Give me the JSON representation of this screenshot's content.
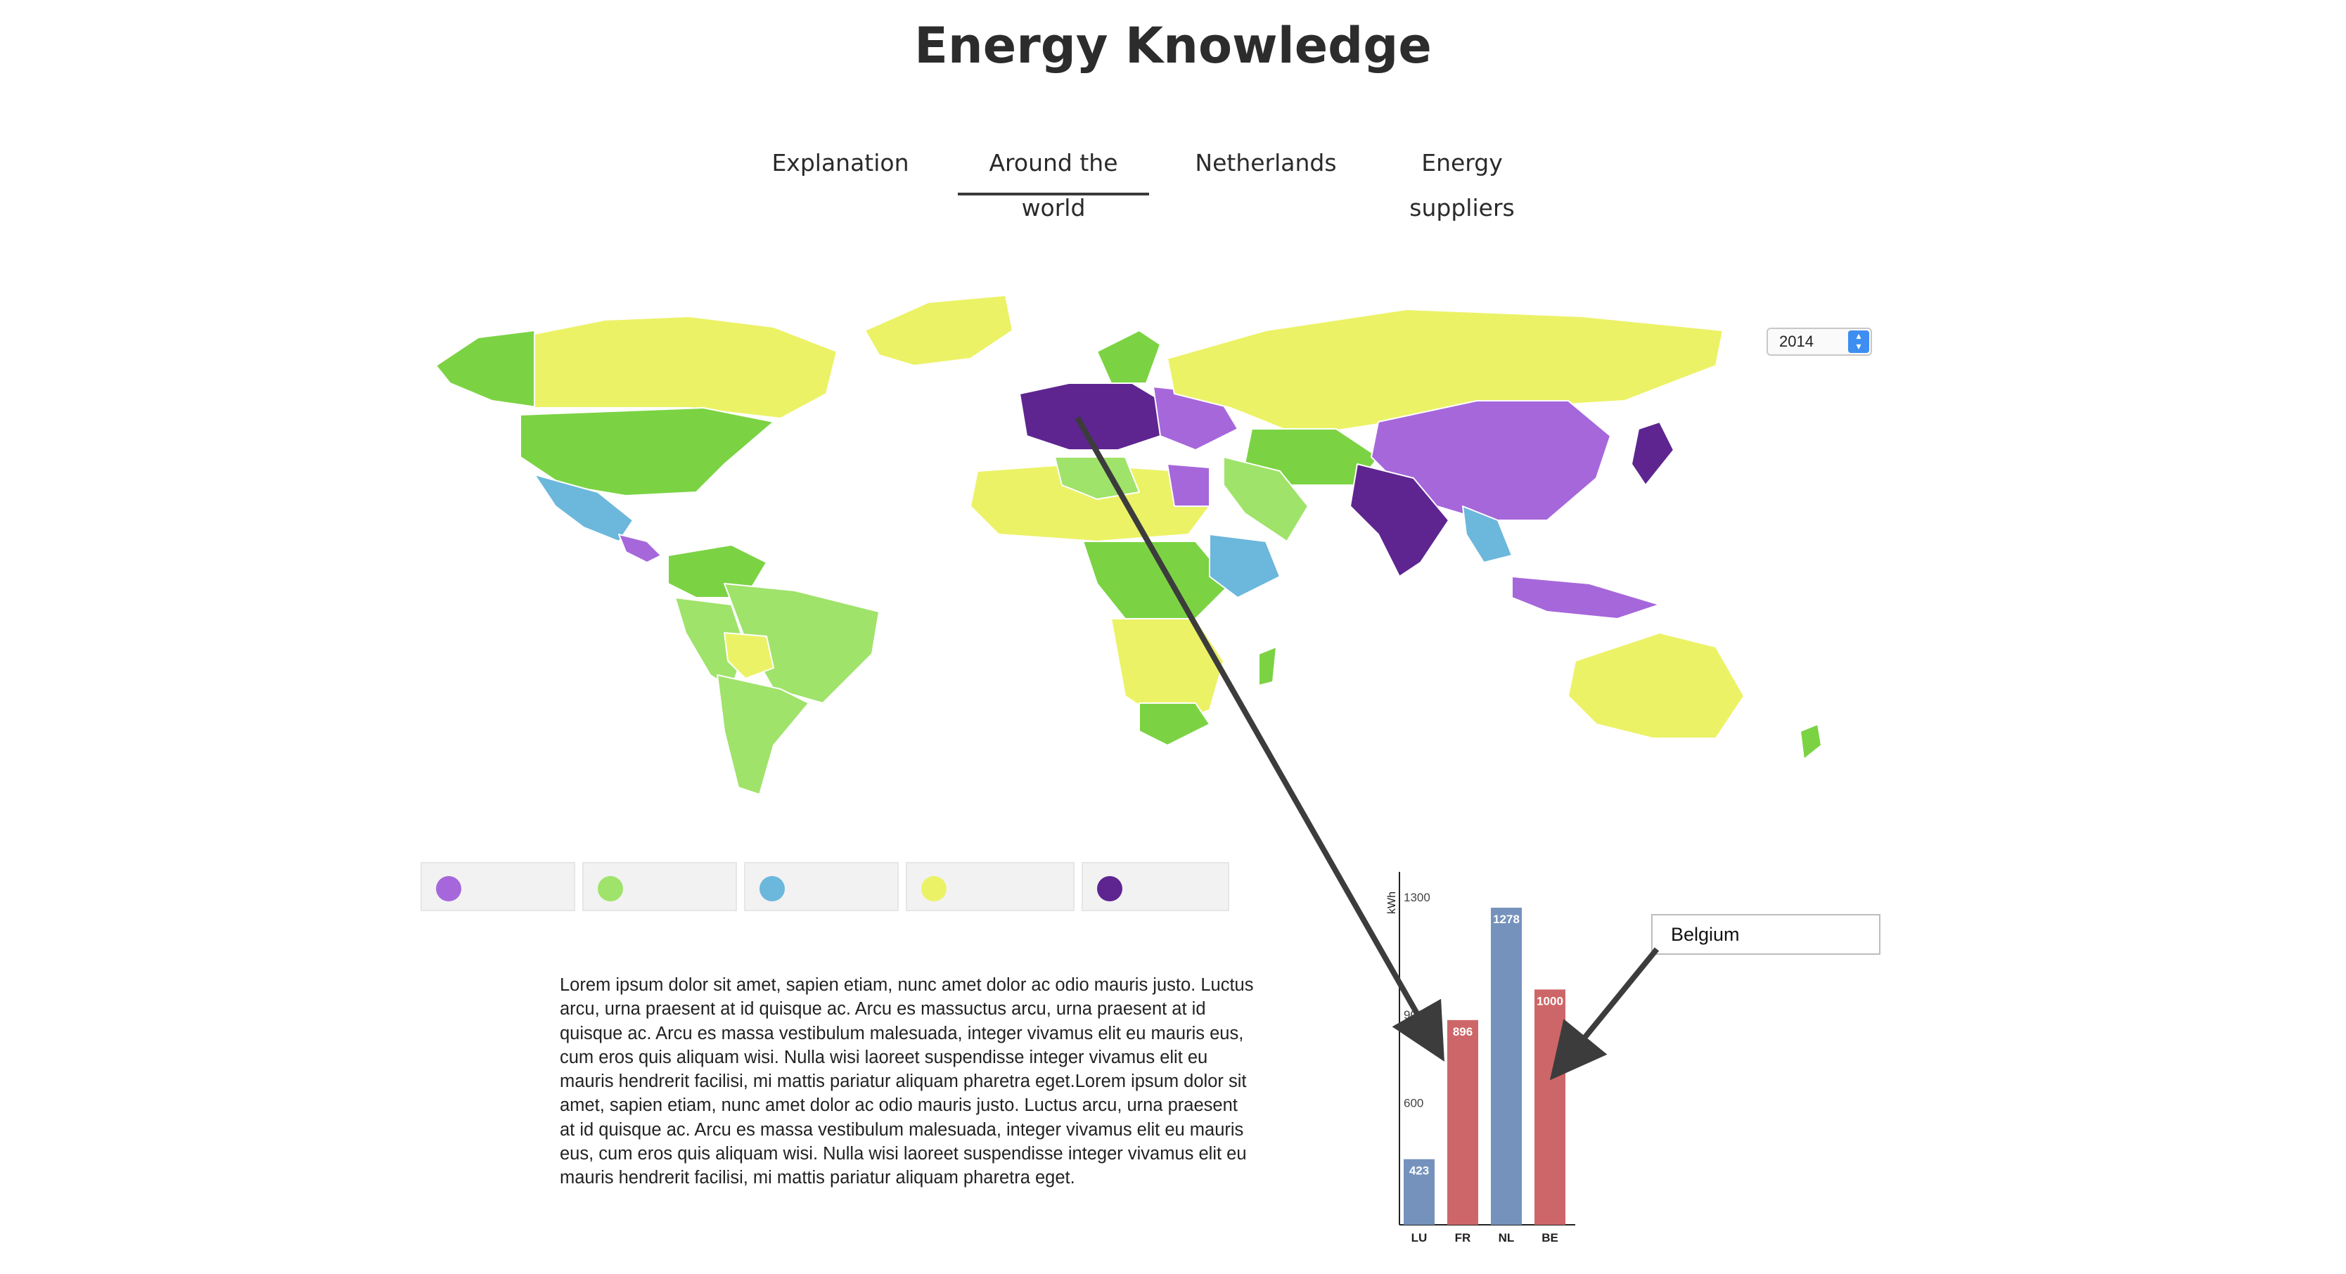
{
  "header": {
    "title": "Energy Knowledge"
  },
  "nav": {
    "tabs": [
      {
        "label": "Explanation",
        "active": false
      },
      {
        "label": "Around the world",
        "active": true
      },
      {
        "label": "Netherlands",
        "active": false
      },
      {
        "label": "Energy suppliers",
        "active": false
      }
    ]
  },
  "year_select": {
    "value": "2014"
  },
  "legend": {
    "colors": [
      "#a667db",
      "#9fe36a",
      "#6cb7dc",
      "#ecf266",
      "#5e2591"
    ]
  },
  "description": {
    "text": "Lorem ipsum dolor sit amet, sapien etiam, nunc amet dolor ac odio mauris justo. Luctus arcu, urna praesent at id quisque ac. Arcu es massuctus arcu, urna praesent at id quisque ac. Arcu es massa vestibulum malesuada, integer vivamus elit eu mauris eus, cum eros quis aliquam wisi. Nulla wisi laoreet suspendisse integer vivamus elit eu mauris hendrerit facilisi, mi mattis pariatur aliquam pharetra eget.Lorem ipsum dolor sit amet, sapien etiam, nunc amet dolor ac odio mauris justo. Luctus arcu, urna praesent at id quisque ac. Arcu es massa vestibulum malesuada, integer vivamus elit eu mauris eus, cum eros quis aliquam wisi. Nulla wisi laoreet suspendisse integer vivamus elit eu mauris hendrerit facilisi, mi mattis pariatur aliquam pharetra eget."
  },
  "tooltip": {
    "country": "Belgium"
  },
  "colors": {
    "bar_blue": "#7592bc",
    "bar_red": "#cd6668",
    "arrow": "#3c3c3c"
  },
  "chart_data": {
    "type": "bar",
    "categories": [
      "LU",
      "FR",
      "NL",
      "BE"
    ],
    "values": [
      423,
      896,
      1278,
      1000
    ],
    "bar_colors": [
      "#7592bc",
      "#cd6668",
      "#7592bc",
      "#cd6668"
    ],
    "ylabel": "kWh",
    "yticks": [
      600,
      900,
      1300
    ],
    "ylim": [
      200,
      1400
    ],
    "grid": false
  }
}
